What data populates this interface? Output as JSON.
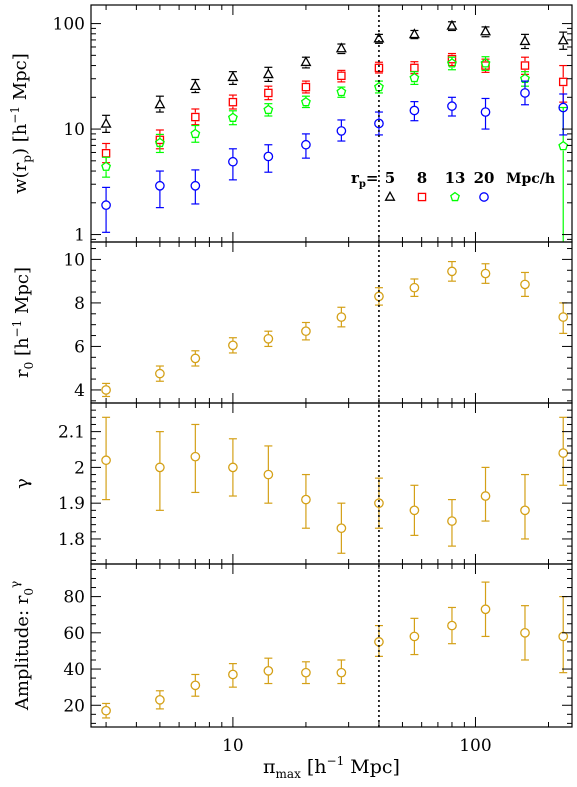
{
  "chart_data": [
    {
      "type": "scatter",
      "panel": "w_rp",
      "ylabel": "w(r_p) [h^-1 Mpc]",
      "ylabel_main": "w(r",
      "ylabel_sub": "p",
      "ylabel_rest": ") [h",
      "ylabel_sup": "−1",
      "ylabel_end": " Mpc]",
      "yscale": "log",
      "ylim": [
        0.85,
        150
      ],
      "yticks": [
        1,
        10,
        100
      ],
      "yticklabels": [
        "1",
        "10",
        "100"
      ],
      "legend": {
        "prefix_main": "r",
        "prefix_sub": "p",
        "prefix_eq": "=",
        "unit": "Mpc/h",
        "placement": "lower-right"
      },
      "series": [
        {
          "name": "5",
          "marker": "triangle",
          "color": "#000000",
          "values": [
            11.2,
            17.1,
            25.5,
            31.0,
            33.0,
            43.0,
            58.0,
            72.0,
            79.0,
            95.0,
            84.0,
            68.0,
            69.0
          ],
          "err_lo": [
            9.3,
            14.5,
            22.2,
            26.5,
            28.3,
            38.0,
            52.0,
            65.0,
            72.0,
            86.0,
            75.0,
            58.0,
            57.0
          ],
          "err_hi": [
            13.5,
            20.5,
            29.5,
            35.0,
            38.5,
            48.0,
            64.0,
            79.0,
            86.0,
            104.0,
            93.0,
            79.0,
            83.0
          ]
        },
        {
          "name": "8",
          "marker": "square",
          "color": "#ff0000",
          "values": [
            5.9,
            7.9,
            13.0,
            18.0,
            22.0,
            25.0,
            32.0,
            38.0,
            38.0,
            46.0,
            40.0,
            40.0,
            28.0
          ],
          "err_lo": [
            4.8,
            6.5,
            11.0,
            15.5,
            19.0,
            22.0,
            28.0,
            34.0,
            33.5,
            40.0,
            34.5,
            33.0,
            18.0
          ],
          "err_hi": [
            7.3,
            9.8,
            15.5,
            21.0,
            25.5,
            28.5,
            36.0,
            43.0,
            43.5,
            52.0,
            46.0,
            48.0,
            40.0
          ]
        },
        {
          "name": "13",
          "marker": "pentagon",
          "color": "#00ff00",
          "values": [
            4.4,
            7.4,
            9.0,
            12.8,
            15.2,
            18.0,
            22.5,
            25.0,
            30.5,
            42.0,
            42.0,
            30.0,
            6.9
          ],
          "err_lo": [
            3.5,
            6.0,
            7.5,
            11.0,
            13.3,
            16.0,
            20.0,
            22.0,
            26.5,
            36.5,
            36.0,
            25.5,
            0.86
          ],
          "err_hi": [
            5.4,
            8.9,
            10.8,
            14.9,
            17.4,
            20.5,
            25.0,
            28.5,
            35.0,
            48.0,
            48.5,
            35.0,
            16.0
          ]
        },
        {
          "name": "20",
          "marker": "circle",
          "color": "#0000ff",
          "values": [
            1.9,
            2.9,
            2.9,
            4.9,
            5.5,
            7.1,
            9.6,
            11.3,
            15.0,
            16.5,
            14.5,
            22.0,
            16.0
          ],
          "err_lo": [
            1.05,
            1.8,
            1.95,
            3.3,
            3.9,
            5.3,
            7.7,
            8.8,
            12.0,
            13.3,
            10.0,
            17.0,
            8.8
          ],
          "err_hi": [
            2.8,
            4.0,
            4.1,
            6.5,
            7.1,
            9.0,
            12.2,
            14.5,
            18.2,
            20.0,
            19.5,
            28.5,
            21.5
          ]
        }
      ]
    },
    {
      "type": "scatter",
      "panel": "r0",
      "ylabel_main": "r",
      "ylabel_sub": "0",
      "ylabel_rest": " [h",
      "ylabel_sup": "−1",
      "ylabel_end": " Mpc]",
      "ylim": [
        3.4,
        10.8
      ],
      "yticks": [
        4,
        6,
        8,
        10
      ],
      "yticklabels": [
        "4",
        "6",
        "8",
        "10"
      ],
      "series": [
        {
          "marker": "circle",
          "color": "#d4a017",
          "values": [
            4.0,
            4.75,
            5.45,
            6.05,
            6.35,
            6.7,
            7.35,
            8.3,
            8.7,
            9.45,
            9.35,
            8.85,
            7.35
          ],
          "err_lo": [
            3.7,
            4.4,
            5.1,
            5.7,
            6.0,
            6.3,
            6.9,
            7.9,
            8.3,
            9.0,
            8.9,
            8.3,
            6.6
          ],
          "err_hi": [
            4.3,
            5.1,
            5.8,
            6.4,
            6.7,
            7.1,
            7.8,
            8.7,
            9.1,
            9.9,
            9.8,
            9.4,
            8.0
          ]
        }
      ]
    },
    {
      "type": "scatter",
      "panel": "gamma",
      "ylabel_main": "γ",
      "ylim": [
        1.73,
        2.18
      ],
      "yticks": [
        1.8,
        1.9,
        2.0,
        2.1
      ],
      "yticklabels": [
        "1.8",
        "1.9",
        "2",
        "2.1"
      ],
      "series": [
        {
          "marker": "circle",
          "color": "#d4a017",
          "values": [
            2.02,
            2.0,
            2.03,
            2.0,
            1.98,
            1.91,
            1.83,
            1.9,
            1.88,
            1.85,
            1.92,
            1.88,
            2.04
          ],
          "err_lo": [
            1.91,
            1.88,
            1.93,
            1.92,
            1.9,
            1.83,
            1.76,
            1.83,
            1.81,
            1.78,
            1.85,
            1.8,
            1.95
          ],
          "err_hi": [
            2.14,
            2.1,
            2.12,
            2.08,
            2.06,
            1.98,
            1.9,
            1.97,
            1.95,
            1.91,
            2.0,
            1.98,
            2.14
          ]
        }
      ]
    },
    {
      "type": "scatter",
      "panel": "amplitude",
      "ylabel_main": "Amplitude: r",
      "ylabel_sub": "0",
      "ylabel_sup": "γ",
      "xlabel_main": "π",
      "xlabel_sub": "max",
      "xlabel_rest": " [h",
      "xlabel_sup": "−1",
      "xlabel_end": " Mpc]",
      "ylim": [
        8,
        98
      ],
      "yticks": [
        20,
        40,
        60,
        80
      ],
      "yticklabels": [
        "20",
        "40",
        "60",
        "80"
      ],
      "series": [
        {
          "marker": "circle",
          "color": "#d4a017",
          "values": [
            17,
            23,
            31,
            37,
            39,
            38,
            38,
            55,
            58,
            64,
            73,
            60,
            58
          ],
          "err_lo": [
            13,
            18,
            25,
            30,
            32,
            32,
            32,
            47,
            48,
            54,
            58,
            45,
            38
          ],
          "err_hi": [
            21,
            28,
            37,
            43,
            46,
            44,
            45,
            64,
            68,
            74,
            88,
            75,
            80
          ]
        }
      ]
    }
  ],
  "x": [
    3,
    5,
    7,
    10,
    14,
    20,
    28,
    40,
    56,
    80,
    110,
    160,
    230
  ],
  "xscale": "log",
  "xlim": [
    2.6,
    250
  ],
  "xticks": [
    10,
    100
  ],
  "xticklabels": [
    "10",
    "100"
  ],
  "vline_x": 40,
  "colors": {
    "black": "#000000",
    "red": "#ff0000",
    "green": "#00ff00",
    "blue": "#0000ff",
    "gold": "#d4a017"
  }
}
